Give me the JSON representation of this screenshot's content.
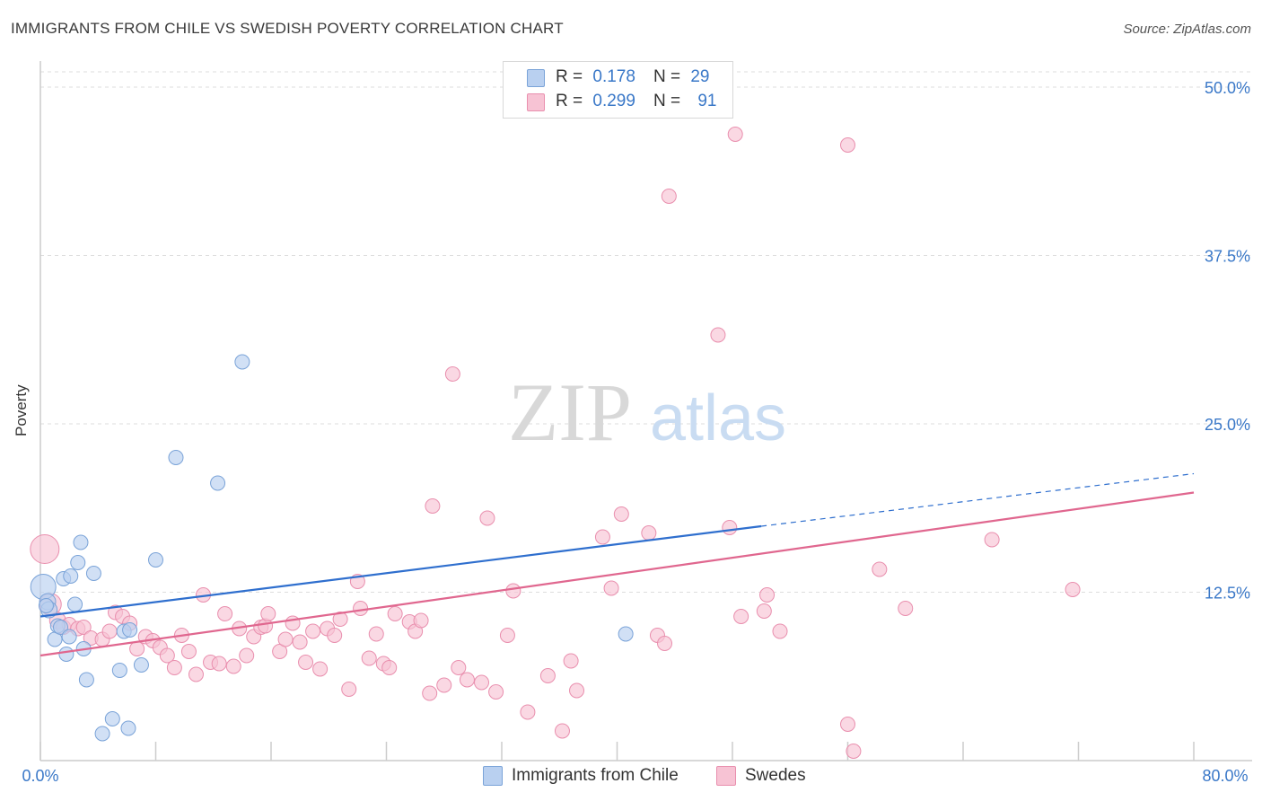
{
  "title": "IMMIGRANTS FROM CHILE VS SWEDISH POVERTY CORRELATION CHART",
  "source": "Source: ZipAtlas.com",
  "watermark": {
    "zip": "ZIP",
    "atlas": "atlas"
  },
  "legend": {
    "rows": [
      {
        "r_label": "R =",
        "r_value": "0.178",
        "n_label": "N =",
        "n_value": "29"
      },
      {
        "r_label": "R =",
        "r_value": "0.299",
        "n_label": "N =",
        "n_value": "91"
      }
    ]
  },
  "bottom_legend": [
    "Immigrants from Chile",
    "Swedes"
  ],
  "colors": {
    "blue_fill": "#b9d0f0",
    "blue_stroke": "#7aa3d8",
    "blue_line": "#2f6fce",
    "pink_fill": "#f7c3d4",
    "pink_stroke": "#e98fae",
    "pink_line": "#e0678f",
    "tick_label": "#3a78c8",
    "grid": "#dddddd"
  },
  "chart_data": {
    "type": "scatter",
    "title": "IMMIGRANTS FROM CHILE VS SWEDISH POVERTY CORRELATION CHART",
    "xlabel": "",
    "ylabel": "Poverty",
    "xlim": [
      0,
      80
    ],
    "ylim": [
      0,
      50
    ],
    "x_tick_labels": [
      "0.0%",
      "80.0%"
    ],
    "y_ticks": [
      12.5,
      25.0,
      37.5,
      50.0
    ],
    "y_tick_labels": [
      "12.5%",
      "25.0%",
      "37.5%",
      "50.0%"
    ],
    "grid": true,
    "legend_position": "top-center",
    "series": [
      {
        "name": "Immigrants from Chile",
        "color": "#b9d0f0",
        "r": 0.178,
        "n": 29,
        "trend": {
          "x0": 0,
          "y0": 10.7,
          "x1": 50,
          "y1": 17.4,
          "dashed_to_x": 80,
          "dashed_to_y": 21.3
        },
        "points": [
          [
            0.2,
            12.9,
            14
          ],
          [
            0.5,
            11.8,
            9
          ],
          [
            0.6,
            11.2,
            9
          ],
          [
            1.0,
            9.0,
            8
          ],
          [
            1.2,
            10.0,
            8
          ],
          [
            1.4,
            9.9,
            8
          ],
          [
            1.6,
            13.5,
            8
          ],
          [
            1.8,
            7.9,
            8
          ],
          [
            2.0,
            9.2,
            8
          ],
          [
            2.1,
            13.7,
            8
          ],
          [
            2.4,
            11.6,
            8
          ],
          [
            2.6,
            14.7,
            8
          ],
          [
            2.8,
            16.2,
            8
          ],
          [
            3.0,
            8.3,
            8
          ],
          [
            3.2,
            6.0,
            8
          ],
          [
            3.7,
            13.9,
            8
          ],
          [
            4.3,
            2.0,
            8
          ],
          [
            5.0,
            3.1,
            8
          ],
          [
            5.5,
            6.7,
            8
          ],
          [
            5.8,
            9.6,
            8
          ],
          [
            6.1,
            2.4,
            8
          ],
          [
            6.2,
            9.7,
            8
          ],
          [
            7.0,
            7.1,
            8
          ],
          [
            8.0,
            14.9,
            8
          ],
          [
            9.4,
            22.5,
            8
          ],
          [
            12.3,
            20.6,
            8
          ],
          [
            14.0,
            29.6,
            8
          ],
          [
            40.6,
            9.4,
            8
          ],
          [
            0.4,
            11.5,
            8
          ]
        ]
      },
      {
        "name": "Swedes",
        "color": "#f7c3d4",
        "r": 0.299,
        "n": 91,
        "trend": {
          "x0": 0,
          "y0": 7.8,
          "x1": 80,
          "y1": 19.9
        },
        "points": [
          [
            0.3,
            15.7,
            16
          ],
          [
            0.7,
            11.6,
            12
          ],
          [
            1.2,
            10.4,
            9
          ],
          [
            1.6,
            9.9,
            8
          ],
          [
            2.0,
            10.1,
            8
          ],
          [
            2.6,
            9.8,
            8
          ],
          [
            3.0,
            9.9,
            8
          ],
          [
            3.5,
            9.1,
            8
          ],
          [
            4.3,
            9.0,
            8
          ],
          [
            4.8,
            9.6,
            8
          ],
          [
            5.2,
            11.0,
            8
          ],
          [
            5.7,
            10.7,
            8
          ],
          [
            6.2,
            10.2,
            8
          ],
          [
            6.7,
            8.3,
            8
          ],
          [
            7.3,
            9.2,
            8
          ],
          [
            7.8,
            8.9,
            8
          ],
          [
            8.3,
            8.4,
            8
          ],
          [
            8.8,
            7.8,
            8
          ],
          [
            9.3,
            6.9,
            8
          ],
          [
            9.8,
            9.3,
            8
          ],
          [
            10.3,
            8.1,
            8
          ],
          [
            10.8,
            6.4,
            8
          ],
          [
            11.3,
            12.3,
            8
          ],
          [
            11.8,
            7.3,
            8
          ],
          [
            12.4,
            7.2,
            8
          ],
          [
            12.8,
            10.9,
            8
          ],
          [
            13.4,
            7.0,
            8
          ],
          [
            13.8,
            9.8,
            8
          ],
          [
            14.3,
            7.8,
            8
          ],
          [
            14.8,
            9.2,
            8
          ],
          [
            15.3,
            9.9,
            8
          ],
          [
            15.6,
            10.0,
            8
          ],
          [
            15.8,
            10.9,
            8
          ],
          [
            16.6,
            8.1,
            8
          ],
          [
            17.0,
            9.0,
            8
          ],
          [
            17.5,
            10.2,
            8
          ],
          [
            18.0,
            8.8,
            8
          ],
          [
            18.4,
            7.3,
            8
          ],
          [
            18.9,
            9.6,
            8
          ],
          [
            19.4,
            6.8,
            8
          ],
          [
            19.9,
            9.8,
            8
          ],
          [
            20.4,
            9.3,
            8
          ],
          [
            20.8,
            10.5,
            8
          ],
          [
            21.4,
            5.3,
            8
          ],
          [
            22.0,
            13.3,
            8
          ],
          [
            22.2,
            11.3,
            8
          ],
          [
            22.8,
            7.6,
            8
          ],
          [
            23.3,
            9.4,
            8
          ],
          [
            23.8,
            7.2,
            8
          ],
          [
            24.2,
            6.9,
            8
          ],
          [
            24.6,
            10.9,
            8
          ],
          [
            25.6,
            10.3,
            8
          ],
          [
            26.0,
            9.6,
            8
          ],
          [
            26.4,
            10.4,
            8
          ],
          [
            27.0,
            5.0,
            8
          ],
          [
            27.2,
            18.9,
            8
          ],
          [
            28.0,
            5.6,
            8
          ],
          [
            28.6,
            28.7,
            8
          ],
          [
            29.0,
            6.9,
            8
          ],
          [
            29.6,
            6.0,
            8
          ],
          [
            30.6,
            5.8,
            8
          ],
          [
            31.0,
            18.0,
            8
          ],
          [
            31.6,
            5.1,
            8
          ],
          [
            32.4,
            9.3,
            8
          ],
          [
            32.8,
            12.6,
            8
          ],
          [
            33.8,
            3.6,
            8
          ],
          [
            35.2,
            6.3,
            8
          ],
          [
            36.2,
            2.2,
            8
          ],
          [
            36.8,
            7.4,
            8
          ],
          [
            37.2,
            5.2,
            8
          ],
          [
            39.0,
            16.6,
            8
          ],
          [
            39.6,
            12.8,
            8
          ],
          [
            40.3,
            18.3,
            8
          ],
          [
            42.2,
            16.9,
            8
          ],
          [
            42.8,
            9.3,
            8
          ],
          [
            43.3,
            8.7,
            8
          ],
          [
            43.6,
            41.9,
            8
          ],
          [
            47.0,
            31.6,
            8
          ],
          [
            47.8,
            17.3,
            8
          ],
          [
            48.2,
            46.5,
            8
          ],
          [
            48.6,
            10.7,
            8
          ],
          [
            50.2,
            11.1,
            8
          ],
          [
            50.4,
            12.3,
            8
          ],
          [
            51.3,
            9.6,
            8
          ],
          [
            56.0,
            45.7,
            8
          ],
          [
            56.0,
            2.7,
            8
          ],
          [
            56.4,
            0.7,
            8
          ],
          [
            58.2,
            14.2,
            8
          ],
          [
            60.0,
            11.3,
            8
          ],
          [
            66.0,
            16.4,
            8
          ],
          [
            71.6,
            12.7,
            8
          ]
        ]
      }
    ]
  }
}
